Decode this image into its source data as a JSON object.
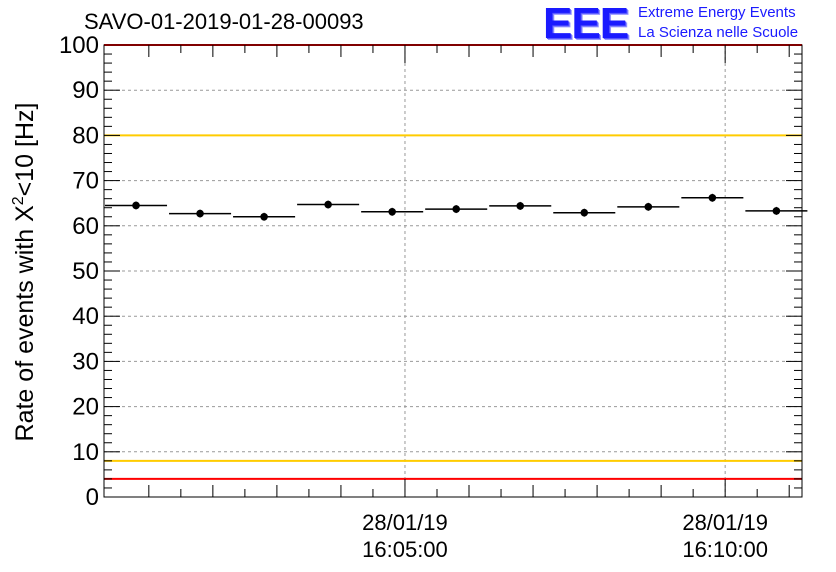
{
  "header": {
    "run_id": "SAVO-01-2019-01-28-00093",
    "logo_text": "EEE",
    "logo_line1": "Extreme Energy Events",
    "logo_line2": "La Scienza nelle Scuole"
  },
  "chart_data": {
    "type": "scatter",
    "title": "SAVO-01-2019-01-28-00093",
    "ylabel_main": "Rate of events with X",
    "ylabel_sup": "2",
    "ylabel_tail": "<10 [Hz]",
    "ylim": [
      0,
      100
    ],
    "yticks": [
      0,
      10,
      20,
      30,
      40,
      50,
      60,
      70,
      80,
      90,
      100
    ],
    "ytick_labels": [
      "0",
      "10",
      "20",
      "30",
      "40",
      "50",
      "60",
      "70",
      "80",
      "90",
      "100"
    ],
    "xlim_minutes": [
      0,
      10.9
    ],
    "xticks": [
      {
        "t": 4.7,
        "date": "28/01/19",
        "time": "16:05:00"
      },
      {
        "t": 9.7,
        "date": "28/01/19",
        "time": "16:10:00"
      }
    ],
    "bin_width_minutes": 1.0,
    "points": [
      {
        "t": 0.5,
        "rate": 64.5
      },
      {
        "t": 1.5,
        "rate": 62.7
      },
      {
        "t": 2.5,
        "rate": 62.0
      },
      {
        "t": 3.5,
        "rate": 64.7
      },
      {
        "t": 4.5,
        "rate": 63.1
      },
      {
        "t": 5.5,
        "rate": 63.7
      },
      {
        "t": 6.5,
        "rate": 64.4
      },
      {
        "t": 7.5,
        "rate": 62.9
      },
      {
        "t": 8.5,
        "rate": 64.2
      },
      {
        "t": 9.5,
        "rate": 66.2
      },
      {
        "t": 10.5,
        "rate": 63.3
      }
    ],
    "reference_lines": [
      {
        "value": 100,
        "color": "#ff0000"
      },
      {
        "value": 80,
        "color": "#ffcc00"
      },
      {
        "value": 8,
        "color": "#ffcc00"
      },
      {
        "value": 4,
        "color": "#ff0000"
      }
    ],
    "grid": true
  }
}
